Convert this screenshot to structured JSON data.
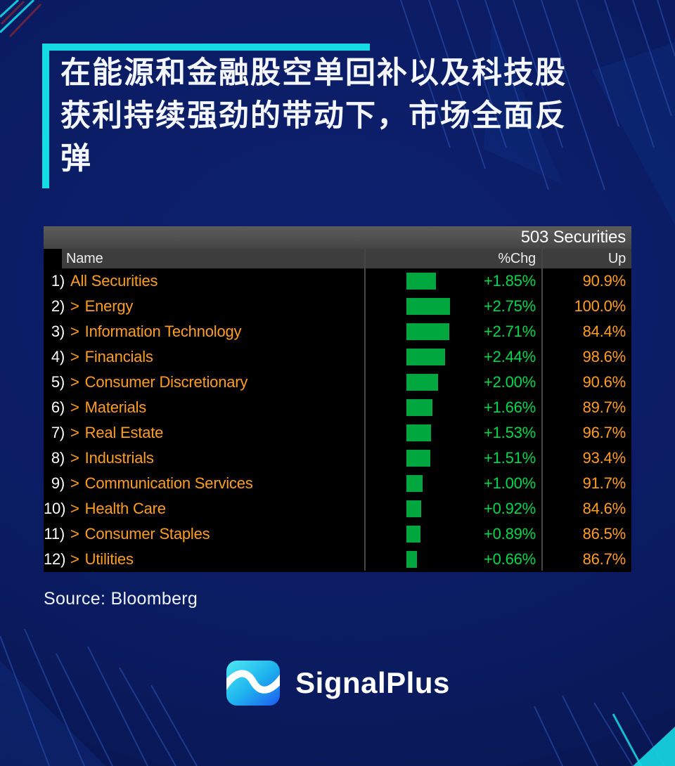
{
  "colors": {
    "background": "#0a1b60",
    "accent_cyan": "#14dbe4",
    "amber": "#ff9e1f",
    "green_text": "#00d84e",
    "green_bar": "#00a73f",
    "terminal_bg": "#000000",
    "title_bar_bg": "#4f4f4f",
    "header_bg": "#3d3d3d"
  },
  "headline": {
    "lines": [
      "在能源和金融股空单回补以及科技股",
      "获利持续强劲的带动下，市场全面反",
      "弹"
    ]
  },
  "terminal": {
    "title": "503 Securities",
    "arrow_glyph": ">",
    "columns": {
      "name": "Name",
      "chg": "%Chg",
      "up": "Up"
    }
  },
  "chart_data": {
    "type": "table",
    "title": "503 Securities",
    "columns": [
      "Name",
      "%Chg",
      "Up"
    ],
    "bar_scale_max": 2.75,
    "rows": [
      {
        "index": "1)",
        "arrow": false,
        "name": "All Securities",
        "chg": "+1.85%",
        "chg_value": 1.85,
        "up": "90.9%"
      },
      {
        "index": "2)",
        "arrow": true,
        "name": "Energy",
        "chg": "+2.75%",
        "chg_value": 2.75,
        "up": "100.0%"
      },
      {
        "index": "3)",
        "arrow": true,
        "name": "Information Technology",
        "chg": "+2.71%",
        "chg_value": 2.71,
        "up": "84.4%"
      },
      {
        "index": "4)",
        "arrow": true,
        "name": "Financials",
        "chg": "+2.44%",
        "chg_value": 2.44,
        "up": "98.6%"
      },
      {
        "index": "5)",
        "arrow": true,
        "name": "Consumer Discretionary",
        "chg": "+2.00%",
        "chg_value": 2.0,
        "up": "90.6%"
      },
      {
        "index": "6)",
        "arrow": true,
        "name": "Materials",
        "chg": "+1.66%",
        "chg_value": 1.66,
        "up": "89.7%"
      },
      {
        "index": "7)",
        "arrow": true,
        "name": "Real Estate",
        "chg": "+1.53%",
        "chg_value": 1.53,
        "up": "96.7%"
      },
      {
        "index": "8)",
        "arrow": true,
        "name": "Industrials",
        "chg": "+1.51%",
        "chg_value": 1.51,
        "up": "93.4%"
      },
      {
        "index": "9)",
        "arrow": true,
        "name": "Communication Services",
        "chg": "+1.00%",
        "chg_value": 1.0,
        "up": "91.7%"
      },
      {
        "index": "10)",
        "arrow": true,
        "name": "Health Care",
        "chg": "+0.92%",
        "chg_value": 0.92,
        "up": "84.6%"
      },
      {
        "index": "11)",
        "arrow": true,
        "name": "Consumer Staples",
        "chg": "+0.89%",
        "chg_value": 0.89,
        "up": "86.5%"
      },
      {
        "index": "12)",
        "arrow": true,
        "name": "Utilities",
        "chg": "+0.66%",
        "chg_value": 0.66,
        "up": "86.7%"
      }
    ]
  },
  "source": {
    "label": "Source: Bloomberg"
  },
  "footer": {
    "brand": "SignalPlus"
  }
}
